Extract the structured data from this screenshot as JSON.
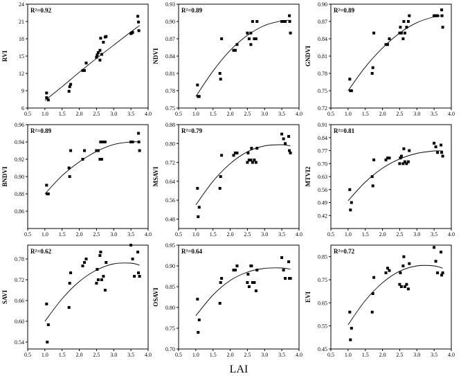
{
  "figure": {
    "xlabel": "LAI"
  },
  "chart_data": [
    {
      "type": "scatter",
      "title": "",
      "ylabel": "RVI",
      "xlabel": "",
      "r2_label": "R²=0.92",
      "xlim": [
        0.5,
        4.0
      ],
      "ylim": [
        6,
        24
      ],
      "xticks": [
        "0.5",
        "1.0",
        "1.5",
        "2.0",
        "2.5",
        "3.0",
        "3.5",
        "4.0"
      ],
      "yticks": [
        "6",
        "9",
        "12",
        "15",
        "18",
        "21",
        "24"
      ],
      "x": [
        1.05,
        1.05,
        1.1,
        1.7,
        1.72,
        1.75,
        2.1,
        2.15,
        2.2,
        2.5,
        2.52,
        2.55,
        2.6,
        2.6,
        2.62,
        2.65,
        2.7,
        2.75,
        2.78,
        3.5,
        3.52,
        3.55,
        3.7,
        3.72,
        3.73
      ],
      "y": [
        8.6,
        7.8,
        7.4,
        8.9,
        9.7,
        10.1,
        12.5,
        12.5,
        13.8,
        14.8,
        15.2,
        15.6,
        14.3,
        16.0,
        18.1,
        15.3,
        17.4,
        18.3,
        18.4,
        18.9,
        19.0,
        19.1,
        21.9,
        20.9,
        19.4
      ],
      "fit_x": [
        1.0,
        1.5,
        2.0,
        2.5,
        3.0,
        3.5,
        3.75
      ],
      "fit_y": [
        7.3,
        9.7,
        12.2,
        14.6,
        16.9,
        19.2,
        20.3
      ]
    },
    {
      "type": "scatter",
      "title": "",
      "ylabel": "NDVI",
      "xlabel": "",
      "r2_label": "R²=0.89",
      "xlim": [
        0.5,
        4.0
      ],
      "ylim": [
        0.75,
        0.93
      ],
      "xticks": [
        "0.5",
        "1.0",
        "1.5",
        "2.0",
        "2.5",
        "3.0",
        "3.5",
        "4.0"
      ],
      "yticks": [
        "0.75",
        "0.78",
        "0.81",
        "0.84",
        "0.87",
        "0.90",
        "0.93"
      ],
      "x": [
        1.05,
        1.07,
        1.1,
        1.7,
        1.72,
        1.75,
        2.1,
        2.15,
        2.2,
        2.5,
        2.55,
        2.6,
        2.6,
        2.65,
        2.7,
        2.75,
        2.78,
        3.5,
        3.55,
        3.6,
        3.72,
        3.73,
        3.75
      ],
      "y": [
        0.79,
        0.77,
        0.77,
        0.81,
        0.8,
        0.87,
        0.85,
        0.85,
        0.86,
        0.88,
        0.87,
        0.88,
        0.86,
        0.9,
        0.87,
        0.87,
        0.9,
        0.9,
        0.9,
        0.9,
        0.91,
        0.9,
        0.88
      ],
      "fit_x": [
        1.0,
        1.5,
        2.0,
        2.5,
        3.0,
        3.5,
        3.75
      ],
      "fit_y": [
        0.77,
        0.814,
        0.85,
        0.876,
        0.893,
        0.901,
        0.902
      ]
    },
    {
      "type": "scatter",
      "title": "",
      "ylabel": "GNDVI",
      "xlabel": "",
      "r2_label": "R²=0.89",
      "xlim": [
        0.5,
        4.0
      ],
      "ylim": [
        0.72,
        0.9
      ],
      "xticks": [
        "0.5",
        "1.0",
        "1.5",
        "2.0",
        "2.5",
        "3.0",
        "3.5",
        "4.0"
      ],
      "yticks": [
        "0.72",
        "0.75",
        "0.78",
        "0.81",
        "0.84",
        "0.87",
        "0.90"
      ],
      "x": [
        1.05,
        1.07,
        1.1,
        1.7,
        1.72,
        1.75,
        2.1,
        2.15,
        2.2,
        2.5,
        2.52,
        2.55,
        2.6,
        2.62,
        2.65,
        2.7,
        2.75,
        2.78,
        3.5,
        3.55,
        3.6,
        3.72,
        3.73,
        3.75
      ],
      "y": [
        0.77,
        0.75,
        0.75,
        0.78,
        0.79,
        0.85,
        0.83,
        0.83,
        0.84,
        0.85,
        0.86,
        0.85,
        0.84,
        0.87,
        0.85,
        0.86,
        0.87,
        0.88,
        0.88,
        0.88,
        0.88,
        0.89,
        0.88,
        0.86
      ],
      "fit_x": [
        1.0,
        1.5,
        2.0,
        2.5,
        3.0,
        3.5,
        3.75
      ],
      "fit_y": [
        0.75,
        0.791,
        0.824,
        0.85,
        0.868,
        0.878,
        0.88
      ]
    },
    {
      "type": "scatter",
      "title": "",
      "ylabel": "BNDVI",
      "xlabel": "",
      "r2_label": "R²=0.89",
      "xlim": [
        0.5,
        4.0
      ],
      "ylim": [
        0.84,
        0.96
      ],
      "xticks": [
        "0.5",
        "1.0",
        "1.5",
        "2.0",
        "2.5",
        "3.0",
        "3.5",
        "4.0"
      ],
      "yticks": [
        "0.86",
        "0.88",
        "0.90",
        "0.92",
        "0.94",
        "0.96"
      ],
      "x": [
        1.05,
        1.07,
        1.1,
        1.7,
        1.72,
        1.75,
        2.1,
        2.15,
        2.5,
        2.55,
        2.6,
        2.62,
        2.65,
        2.7,
        2.75,
        3.5,
        3.55,
        3.72,
        3.73,
        3.75
      ],
      "y": [
        0.89,
        0.88,
        0.88,
        0.91,
        0.9,
        0.93,
        0.92,
        0.93,
        0.93,
        0.93,
        0.92,
        0.94,
        0.92,
        0.94,
        0.94,
        0.94,
        0.94,
        0.95,
        0.94,
        0.93
      ],
      "fit_x": [
        1.0,
        1.5,
        2.0,
        2.5,
        3.0,
        3.5,
        3.75
      ],
      "fit_y": [
        0.88,
        0.901,
        0.917,
        0.929,
        0.937,
        0.94,
        0.94
      ]
    },
    {
      "type": "scatter",
      "title": "",
      "ylabel": "MSAVI",
      "xlabel": "",
      "r2_label": "R²=0.79",
      "xlim": [
        0.5,
        4.0
      ],
      "ylim": [
        0.44,
        0.88
      ],
      "xticks": [
        "0.5",
        "1.0",
        "1.5",
        "2.0",
        "2.5",
        "3.0",
        "3.5",
        "4.0"
      ],
      "yticks": [
        "0.48",
        "0.56",
        "0.64",
        "0.72",
        "0.80",
        "0.88"
      ],
      "x": [
        1.05,
        1.07,
        1.1,
        1.7,
        1.72,
        1.75,
        2.1,
        2.15,
        2.2,
        2.5,
        2.52,
        2.55,
        2.6,
        2.62,
        2.65,
        2.7,
        2.75,
        2.78,
        3.5,
        3.55,
        3.6,
        3.7,
        3.72,
        3.75
      ],
      "y": [
        0.61,
        0.49,
        0.53,
        0.61,
        0.66,
        0.75,
        0.75,
        0.76,
        0.76,
        0.72,
        0.76,
        0.73,
        0.73,
        0.78,
        0.72,
        0.73,
        0.72,
        0.78,
        0.84,
        0.82,
        0.8,
        0.83,
        0.77,
        0.76
      ],
      "fit_x": [
        1.0,
        1.5,
        2.0,
        2.5,
        3.0,
        3.5,
        3.75
      ],
      "fit_y": [
        0.54,
        0.64,
        0.715,
        0.765,
        0.79,
        0.795,
        0.79
      ]
    },
    {
      "type": "scatter",
      "title": "",
      "ylabel": "MTVI2",
      "xlabel": "",
      "r2_label": "R²=0.81",
      "xlim": [
        0.5,
        4.0
      ],
      "ylim": [
        0.35,
        0.91
      ],
      "xticks": [
        "0.5",
        "1.0",
        "1.5",
        "2.0",
        "2.5",
        "3.0",
        "3.5",
        "4.0"
      ],
      "yticks": [
        "0.42",
        "0.49",
        "0.56",
        "0.63",
        "0.70",
        "0.77",
        "0.84",
        "0.91"
      ],
      "x": [
        1.05,
        1.07,
        1.1,
        1.7,
        1.72,
        1.75,
        2.1,
        2.15,
        2.2,
        2.5,
        2.52,
        2.55,
        2.6,
        2.62,
        2.65,
        2.7,
        2.75,
        2.78,
        3.5,
        3.55,
        3.6,
        3.7,
        3.72,
        3.75
      ],
      "y": [
        0.56,
        0.45,
        0.49,
        0.63,
        0.58,
        0.72,
        0.72,
        0.73,
        0.73,
        0.7,
        0.73,
        0.74,
        0.7,
        0.78,
        0.71,
        0.7,
        0.71,
        0.77,
        0.81,
        0.79,
        0.76,
        0.8,
        0.76,
        0.74
      ],
      "fit_x": [
        1.0,
        1.5,
        2.0,
        2.5,
        3.0,
        3.5,
        3.75
      ],
      "fit_y": [
        0.5,
        0.6,
        0.675,
        0.725,
        0.755,
        0.768,
        0.768
      ]
    },
    {
      "type": "scatter",
      "title": "",
      "ylabel": "SAVI",
      "xlabel": "",
      "r2_label": "R²=0.62",
      "xlim": [
        0.5,
        4.0
      ],
      "ylim": [
        0.52,
        0.82
      ],
      "xticks": [
        "0.5",
        "1.0",
        "1.5",
        "2.0",
        "2.5",
        "3.0",
        "3.5",
        "4.0"
      ],
      "yticks": [
        "0.54",
        "0.60",
        "0.66",
        "0.72",
        "0.78"
      ],
      "x": [
        1.05,
        1.07,
        1.1,
        1.7,
        1.72,
        1.75,
        2.1,
        2.15,
        2.2,
        2.5,
        2.52,
        2.55,
        2.6,
        2.62,
        2.65,
        2.7,
        2.75,
        2.78,
        3.5,
        3.55,
        3.6,
        3.7,
        3.72,
        3.75
      ],
      "y": [
        0.65,
        0.54,
        0.59,
        0.64,
        0.71,
        0.74,
        0.76,
        0.77,
        0.78,
        0.71,
        0.75,
        0.72,
        0.79,
        0.8,
        0.72,
        0.73,
        0.69,
        0.77,
        0.82,
        0.78,
        0.73,
        0.8,
        0.74,
        0.73
      ],
      "fit_x": [
        1.0,
        1.5,
        2.0,
        2.5,
        3.0,
        3.5,
        3.75
      ],
      "fit_y": [
        0.6,
        0.665,
        0.715,
        0.748,
        0.766,
        0.768,
        0.762
      ]
    },
    {
      "type": "scatter",
      "title": "",
      "ylabel": "OSAVI",
      "xlabel": "",
      "r2_label": "R²=0.64",
      "xlim": [
        0.5,
        4.0
      ],
      "ylim": [
        0.7,
        0.95
      ],
      "xticks": [
        "0.5",
        "1.0",
        "1.5",
        "2.0",
        "2.5",
        "3.0",
        "3.5",
        "4.0"
      ],
      "yticks": [
        "0.70",
        "0.75",
        "0.80",
        "0.85",
        "0.90",
        "0.95"
      ],
      "x": [
        1.05,
        1.07,
        1.1,
        1.7,
        1.72,
        1.75,
        2.1,
        2.15,
        2.2,
        2.5,
        2.52,
        2.55,
        2.6,
        2.62,
        2.65,
        2.7,
        2.75,
        2.78,
        3.5,
        3.55,
        3.6,
        3.7,
        3.72,
        3.75
      ],
      "y": [
        0.82,
        0.74,
        0.77,
        0.81,
        0.86,
        0.87,
        0.89,
        0.89,
        0.9,
        0.86,
        0.88,
        0.85,
        0.9,
        0.9,
        0.86,
        0.86,
        0.84,
        0.89,
        0.92,
        0.89,
        0.87,
        0.91,
        0.87,
        0.87
      ],
      "fit_x": [
        1.0,
        1.5,
        2.0,
        2.5,
        3.0,
        3.5,
        3.75
      ],
      "fit_y": [
        0.78,
        0.83,
        0.865,
        0.885,
        0.894,
        0.895,
        0.892
      ]
    },
    {
      "type": "scatter",
      "title": "",
      "ylabel": "EVI",
      "xlabel": "",
      "r2_label": "R²=0.72",
      "xlim": [
        0.5,
        4.0
      ],
      "ylim": [
        0.45,
        0.9
      ],
      "xticks": [
        "0.5",
        "1.0",
        "1.5",
        "2.0",
        "2.5",
        "3.0",
        "3.5",
        "4.0"
      ],
      "yticks": [
        "0.45",
        "0.55",
        "0.65",
        "0.75",
        "0.85"
      ],
      "x": [
        1.05,
        1.07,
        1.1,
        1.7,
        1.72,
        1.75,
        2.1,
        2.15,
        2.2,
        2.5,
        2.52,
        2.55,
        2.6,
        2.62,
        2.65,
        2.7,
        2.75,
        2.78,
        3.5,
        3.55,
        3.6,
        3.7,
        3.72,
        3.75
      ],
      "y": [
        0.61,
        0.49,
        0.54,
        0.61,
        0.69,
        0.76,
        0.78,
        0.8,
        0.79,
        0.73,
        0.78,
        0.72,
        0.81,
        0.85,
        0.72,
        0.73,
        0.71,
        0.82,
        0.89,
        0.83,
        0.78,
        0.87,
        0.77,
        0.78
      ],
      "fit_x": [
        1.0,
        1.5,
        2.0,
        2.5,
        3.0,
        3.5,
        3.75
      ],
      "fit_y": [
        0.555,
        0.66,
        0.737,
        0.787,
        0.81,
        0.81,
        0.8
      ]
    }
  ]
}
